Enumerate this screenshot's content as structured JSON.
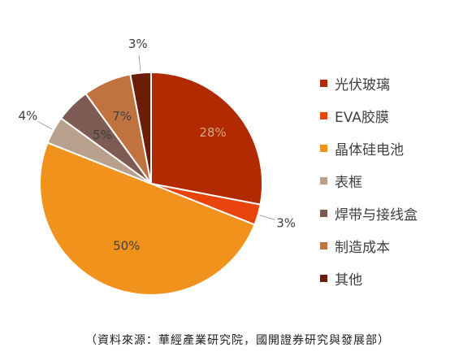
{
  "chart_data": {
    "type": "pie",
    "categories": [
      "光伏玻璃",
      "EVA胶膜",
      "晶体硅电池",
      "表框",
      "焊带与接线盒",
      "制造成本",
      "其他"
    ],
    "values": [
      28,
      3,
      50,
      4,
      5,
      7,
      3
    ],
    "labels": [
      "28%",
      "3%",
      "50%",
      "4%",
      "5%",
      "7%",
      "3%"
    ],
    "colors": [
      "#b22a00",
      "#e8440c",
      "#f0921c",
      "#b8a08c",
      "#7d5a52",
      "#c0733f",
      "#6e1c0a"
    ],
    "legend_position": "right"
  },
  "source_note": "（資料來源：華經產業研究院，國開證券研究與發展部）"
}
